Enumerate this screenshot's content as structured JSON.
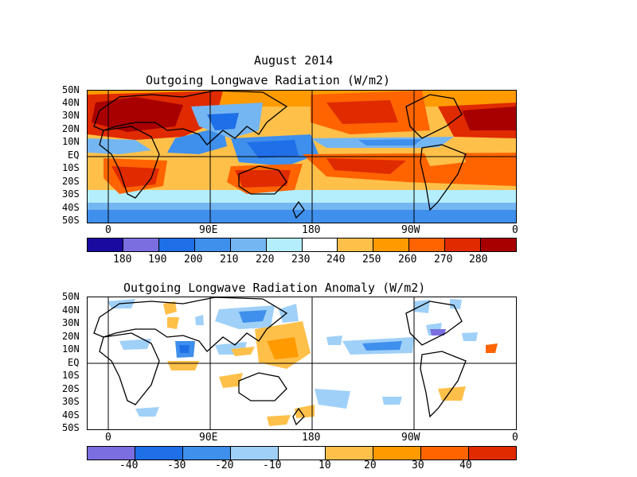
{
  "top_title_line1": "August 2014",
  "top_title_line2": "Outgoing Longwave Radiation (W/m2)",
  "bottom_title": "Outgoing Longwave Radiation Anomaly (W/m2)",
  "lat_labels": [
    "50N",
    "40N",
    "30N",
    "20N",
    "10N",
    "EQ",
    "10S",
    "20S",
    "30S",
    "40S",
    "50S"
  ],
  "lon_labels": [
    "0",
    "90E",
    "180",
    "90W",
    "0"
  ],
  "cbar1_labels": [
    "180",
    "190",
    "200",
    "210",
    "220",
    "230",
    "240",
    "250",
    "260",
    "270",
    "280"
  ],
  "cbar1_colors": [
    "#1a0aa0",
    "#7a6ee0",
    "#1f6fe8",
    "#3f8fec",
    "#74b6f2",
    "#b4eefc",
    "#ffffff",
    "#ffc04a",
    "#ff9a00",
    "#ff6400",
    "#e02a00",
    "#a80000"
  ],
  "cbar2_labels": [
    "-40",
    "-30",
    "-20",
    "-10",
    "10",
    "20",
    "30",
    "40"
  ],
  "cbar2_colors": [
    "#7a6ee0",
    "#1f6fe8",
    "#3f8fec",
    "#9fd0f8",
    "#ffffff",
    "#ffc04a",
    "#ff9a00",
    "#ff6400",
    "#e02a00"
  ],
  "icons": {
    "coastline": "coastline-outline"
  }
}
